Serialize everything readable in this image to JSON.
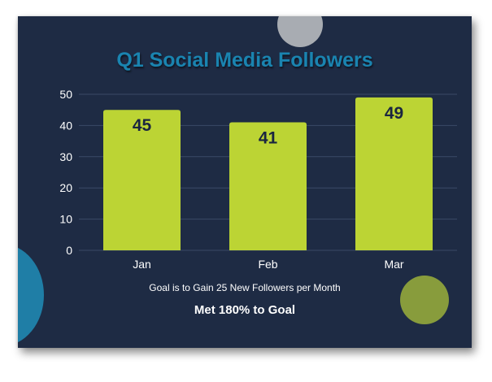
{
  "colors": {
    "background": "#1e2b44",
    "title": "#1a84b0",
    "bar": "#bcd434",
    "bar_label": "#1a2540",
    "grid": "#3a4a66",
    "axis_text": "#ffffff",
    "circle_gray": "#a8acb2",
    "circle_teal": "#1f7ea6",
    "circle_olive": "#889c3c"
  },
  "chart_data": {
    "type": "bar",
    "title": "Q1 Social Media Followers",
    "categories": [
      "Jan",
      "Feb",
      "Mar"
    ],
    "values": [
      45,
      41,
      49
    ],
    "data_labels": [
      "45",
      "41",
      "49"
    ],
    "ylim": [
      0,
      50
    ],
    "yticks": [
      "0",
      "10",
      "20",
      "30",
      "40",
      "50"
    ],
    "grid": true,
    "xlabel": "",
    "ylabel": "",
    "legend": "none"
  },
  "notes": {
    "goal": "Goal is to Gain 25 New Followers per Month",
    "result": "Met 180% to Goal"
  }
}
